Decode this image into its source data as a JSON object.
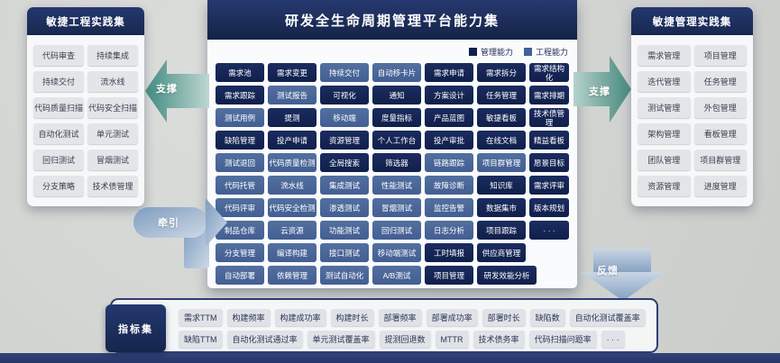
{
  "center": {
    "title": "研发全生命周期管理平台能力集",
    "legend": [
      {
        "label": "管理能力",
        "color": "#101f4a"
      },
      {
        "label": "工程能力",
        "color": "#43609a"
      }
    ],
    "grid_rows": [
      [
        {
          "label": "需求池",
          "type": "m"
        },
        {
          "label": "需求变更",
          "type": "m"
        },
        {
          "label": "持续交付",
          "type": "e"
        },
        {
          "label": "自动移卡片",
          "type": "e"
        },
        {
          "label": "需求申请",
          "type": "m"
        },
        {
          "label": "需求拆分",
          "type": "m"
        },
        {
          "label": "需求结构化",
          "type": "m"
        }
      ],
      [
        {
          "label": "需求跟踪",
          "type": "m"
        },
        {
          "label": "测试报告",
          "type": "e"
        },
        {
          "label": "可视化",
          "type": "m"
        },
        {
          "label": "通知",
          "type": "m"
        },
        {
          "label": "方案设计",
          "type": "m"
        },
        {
          "label": "任务管理",
          "type": "m"
        },
        {
          "label": "需求排期",
          "type": "m"
        }
      ],
      [
        {
          "label": "测试用例",
          "type": "e"
        },
        {
          "label": "提测",
          "type": "m"
        },
        {
          "label": "移动端",
          "type": "e"
        },
        {
          "label": "度量指标",
          "type": "m"
        },
        {
          "label": "产品蓝图",
          "type": "m"
        },
        {
          "label": "敏捷看板",
          "type": "m"
        },
        {
          "label": "技术债管理",
          "type": "m"
        }
      ],
      [
        {
          "label": "缺陷管理",
          "type": "m"
        },
        {
          "label": "投产申请",
          "type": "m"
        },
        {
          "label": "资源管理",
          "type": "m"
        },
        {
          "label": "个人工作台",
          "type": "m"
        },
        {
          "label": "投产审批",
          "type": "m"
        },
        {
          "label": "在线文档",
          "type": "m"
        },
        {
          "label": "精益看板",
          "type": "m"
        }
      ],
      [
        {
          "label": "测试退回",
          "type": "e"
        },
        {
          "label": "代码质量检测",
          "type": "e"
        },
        {
          "label": "全局搜索",
          "type": "m"
        },
        {
          "label": "筛选器",
          "type": "m"
        },
        {
          "label": "链路跟踪",
          "type": "e"
        },
        {
          "label": "项目群管理",
          "type": "e"
        },
        {
          "label": "愿景目标",
          "type": "m"
        }
      ],
      [
        {
          "label": "代码托管",
          "type": "e"
        },
        {
          "label": "流水线",
          "type": "e"
        },
        {
          "label": "集成测试",
          "type": "e"
        },
        {
          "label": "性能测试",
          "type": "e"
        },
        {
          "label": "故障诊断",
          "type": "e"
        },
        {
          "label": "知识库",
          "type": "m"
        },
        {
          "label": "需求评审",
          "type": "m"
        }
      ],
      [
        {
          "label": "代码评审",
          "type": "e"
        },
        {
          "label": "代码安全检测",
          "type": "e"
        },
        {
          "label": "渗透测试",
          "type": "e"
        },
        {
          "label": "冒烟测试",
          "type": "e"
        },
        {
          "label": "监控告警",
          "type": "e"
        },
        {
          "label": "数据集市",
          "type": "m"
        },
        {
          "label": "版本规划",
          "type": "m"
        }
      ],
      [
        {
          "label": "制品仓库",
          "type": "e"
        },
        {
          "label": "云资源",
          "type": "e"
        },
        {
          "label": "功能测试",
          "type": "e"
        },
        {
          "label": "回归测试",
          "type": "e"
        },
        {
          "label": "日志分析",
          "type": "e"
        },
        {
          "label": "项目跟踪",
          "type": "m"
        },
        {
          "label": "· · ·",
          "type": "m"
        }
      ],
      [
        {
          "label": "分支管理",
          "type": "e"
        },
        {
          "label": "编译构建",
          "type": "e"
        },
        {
          "label": "接口测试",
          "type": "e"
        },
        {
          "label": "移动端测试",
          "type": "e"
        },
        {
          "label": "工时填报",
          "type": "m"
        },
        {
          "label": "供应商管理",
          "type": "m"
        }
      ],
      [
        {
          "label": "自动部署",
          "type": "e"
        },
        {
          "label": "依赖管理",
          "type": "e"
        },
        {
          "label": "测试自动化",
          "type": "e"
        },
        {
          "label": "A/B测试",
          "type": "e"
        },
        {
          "label": "项目管理",
          "type": "m"
        },
        {
          "label": "研发效能分析",
          "type": "m",
          "wide": true
        }
      ]
    ]
  },
  "left_panel": {
    "title": "敏捷工程实践集",
    "items": [
      "代码审查",
      "持续集成",
      "持续交付",
      "流水线",
      "代码质量扫描",
      "代码安全扫描",
      "自动化测试",
      "单元测试",
      "回归测试",
      "冒烟测试",
      "分支策略",
      "技术债管理"
    ]
  },
  "right_panel": {
    "title": "敏捷管理实践集",
    "items": [
      "需求管理",
      "项目管理",
      "迭代管理",
      "任务管理",
      "测试管理",
      "外包管理",
      "架构管理",
      "看板管理",
      "团队管理",
      "项目群管理",
      "资源管理",
      "进度管理"
    ]
  },
  "arrows": {
    "support_left": "支撑",
    "support_right": "支撑",
    "pull": "牵引",
    "feedback": "反馈"
  },
  "metrics": {
    "title": "指标集",
    "rows": [
      [
        "需求TTM",
        "构建频率",
        "构建成功率",
        "构建时长",
        "部署频率",
        "部署成功率",
        "部署时长",
        "缺陷数",
        "自动化测试覆盖率"
      ],
      [
        "缺陷TTM",
        "自动化测试通过率",
        "单元测试覆盖率",
        "提测回退数",
        "MTTR",
        "技术债务率",
        "代码扫描问题率",
        "· · ·"
      ]
    ]
  },
  "colors": {
    "management": "#101f4a",
    "engineering": "#43609a",
    "teal_arrow": "#45867c",
    "steel_arrow": "#8aa5c4",
    "panel_header": "#1b2d66"
  }
}
